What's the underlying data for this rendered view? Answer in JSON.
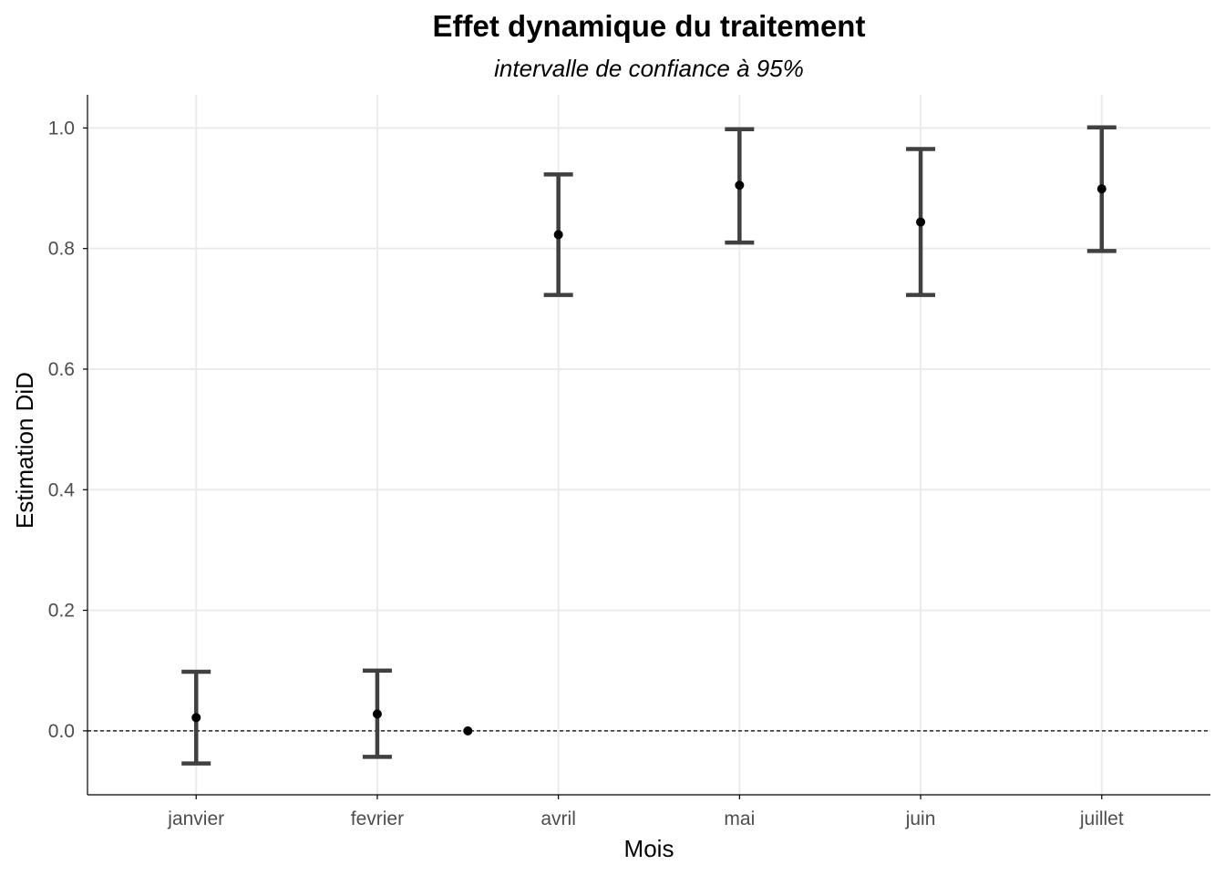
{
  "chart_data": {
    "type": "scatter",
    "title": "Effet dynamique du traitement",
    "subtitle": "intervalle de confiance à 95%",
    "xlabel": "Mois",
    "ylabel": "Estimation DiD",
    "x_ticks": [
      "janvier",
      "fevrier",
      "avril",
      "mai",
      "juin",
      "juillet"
    ],
    "x_range": [
      0.4,
      6.6
    ],
    "ylim": [
      -0.106,
      1.055
    ],
    "y_ticks": [
      0.0,
      0.2,
      0.4,
      0.6,
      0.8,
      1.0
    ],
    "y_tick_labels": [
      "0.0",
      "0.2",
      "0.4",
      "0.6",
      "0.8",
      "1.0"
    ],
    "reference_line": 0,
    "grid": true,
    "points": [
      {
        "x": 1,
        "estimate": 0.022,
        "ci_low": -0.054,
        "ci_high": 0.098
      },
      {
        "x": 2,
        "estimate": 0.028,
        "ci_low": -0.043,
        "ci_high": 0.1
      },
      {
        "x": 2.5,
        "estimate": 0.0
      },
      {
        "x": 3,
        "estimate": 0.823,
        "ci_low": 0.723,
        "ci_high": 0.923
      },
      {
        "x": 4,
        "estimate": 0.905,
        "ci_low": 0.81,
        "ci_high": 0.998
      },
      {
        "x": 5,
        "estimate": 0.844,
        "ci_low": 0.723,
        "ci_high": 0.965
      },
      {
        "x": 6,
        "estimate": 0.899,
        "ci_low": 0.796,
        "ci_high": 1.001
      }
    ],
    "colors": {
      "errorbar": "#404040",
      "point": "#000000",
      "grid": "#ebebeb",
      "tick_text": "#4d4d4d"
    }
  }
}
